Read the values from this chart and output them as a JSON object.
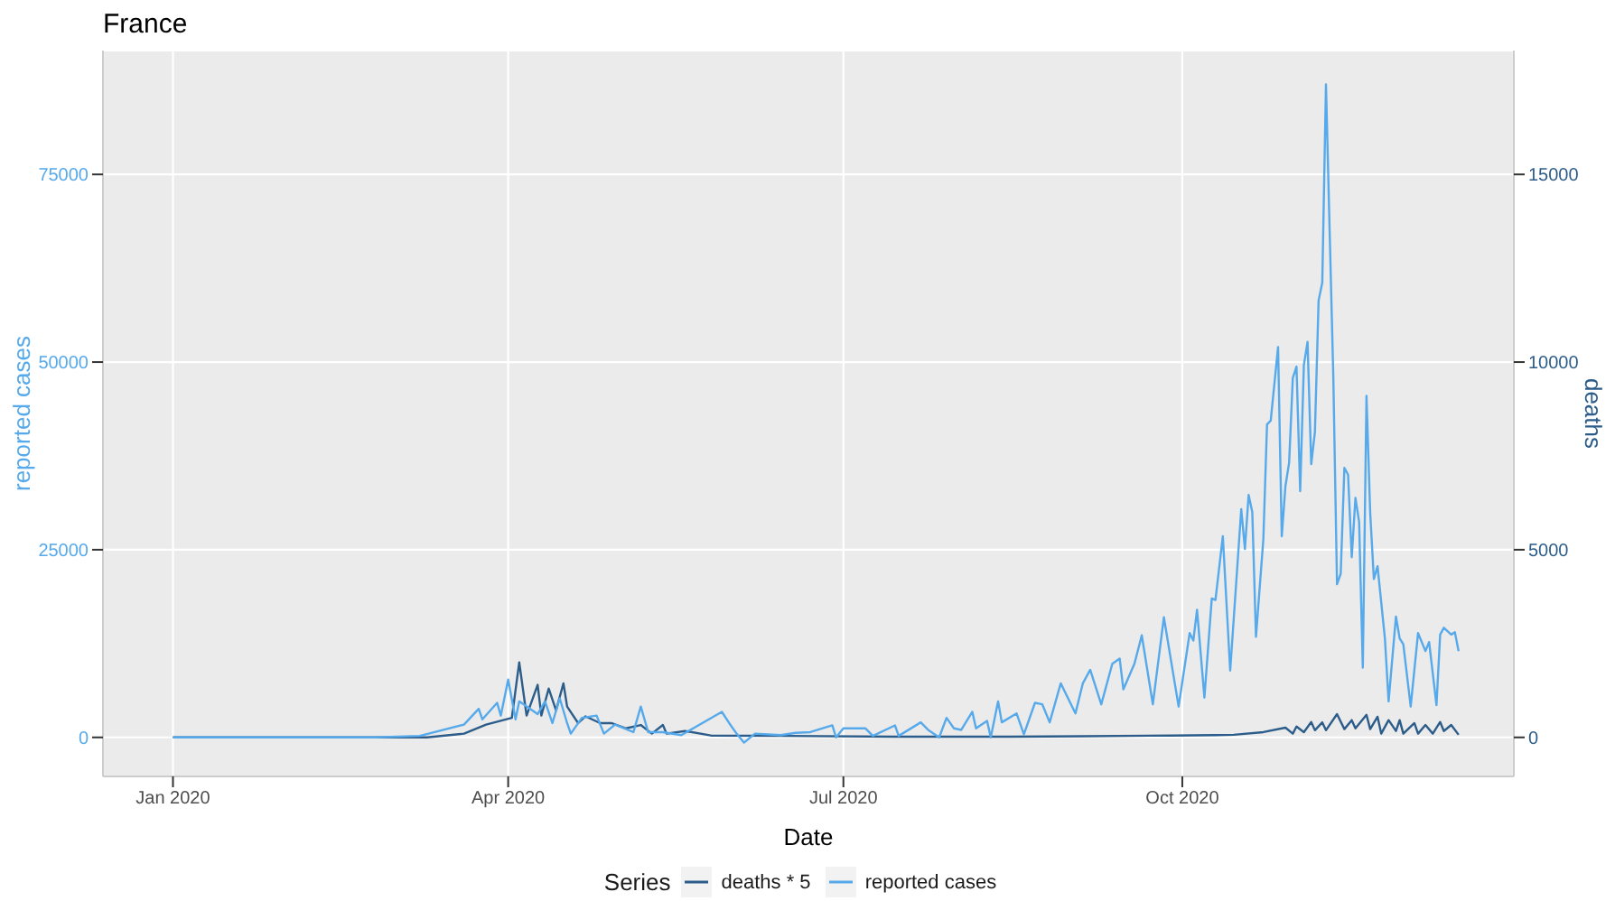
{
  "chart_data": {
    "type": "line",
    "title": "France",
    "xlabel": "Date",
    "ylabel": "reported cases",
    "y2label": "deaths",
    "legend_title": "Series",
    "legend": "bottom",
    "grid": true,
    "xlim": [
      "2019-12-13",
      "2020-12-30"
    ],
    "xticks": [
      {
        "value": "2020-01-01",
        "label": "Jan 2020"
      },
      {
        "value": "2020-04-01",
        "label": "Apr 2020"
      },
      {
        "value": "2020-07-01",
        "label": "Jul 2020"
      },
      {
        "value": "2020-10-01",
        "label": "Oct 2020"
      }
    ],
    "ylim": [
      -5200,
      91500
    ],
    "yticks": [
      0,
      25000,
      50000,
      75000
    ],
    "y2lim": [
      -1040,
      18300
    ],
    "y2ticks": [
      0,
      5000,
      10000,
      15000
    ],
    "series": [
      {
        "name": "deaths * 5",
        "color": "#2c5d8a",
        "axis": "y2",
        "x": [
          "2020-01-01",
          "2020-03-10",
          "2020-03-20",
          "2020-03-26",
          "2020-04-02",
          "2020-04-04",
          "2020-04-06",
          "2020-04-09",
          "2020-04-10",
          "2020-04-12",
          "2020-04-14",
          "2020-04-16",
          "2020-04-17",
          "2020-04-20",
          "2020-04-22",
          "2020-04-26",
          "2020-04-29",
          "2020-05-03",
          "2020-05-07",
          "2020-05-10",
          "2020-05-13",
          "2020-05-14",
          "2020-05-19",
          "2020-05-26",
          "2020-06-15",
          "2020-07-15",
          "2020-08-15",
          "2020-09-04",
          "2020-09-28",
          "2020-10-10",
          "2020-10-15",
          "2020-10-23",
          "2020-10-29",
          "2020-10-31",
          "2020-11-01",
          "2020-11-03",
          "2020-11-05",
          "2020-11-06",
          "2020-11-08",
          "2020-11-09",
          "2020-11-12",
          "2020-11-14",
          "2020-11-16",
          "2020-11-17",
          "2020-11-20",
          "2020-11-21",
          "2020-11-23",
          "2020-11-24",
          "2020-11-26",
          "2020-11-28",
          "2020-11-29",
          "2020-11-30",
          "2020-12-03",
          "2020-12-04",
          "2020-12-06",
          "2020-12-08",
          "2020-12-10",
          "2020-12-11",
          "2020-12-13",
          "2020-12-15"
        ],
        "values": [
          0,
          0,
          100,
          340,
          520,
          2000,
          580,
          1400,
          580,
          1300,
          720,
          1440,
          820,
          380,
          560,
          380,
          380,
          240,
          330,
          100,
          330,
          100,
          170,
          50,
          40,
          20,
          20,
          30,
          50,
          60,
          70,
          140,
          260,
          100,
          290,
          140,
          410,
          190,
          400,
          190,
          620,
          220,
          460,
          240,
          600,
          220,
          550,
          100,
          460,
          170,
          460,
          100,
          380,
          100,
          330,
          100,
          410,
          170,
          330,
          70
        ]
      },
      {
        "name": "reported cases",
        "color": "#56a9ea",
        "x": [
          "2020-01-01",
          "2020-02-25",
          "2020-03-08",
          "2020-03-20",
          "2020-03-24",
          "2020-03-25",
          "2020-03-29",
          "2020-03-30",
          "2020-04-01",
          "2020-04-03",
          "2020-04-04",
          "2020-04-09",
          "2020-04-11",
          "2020-04-13",
          "2020-04-15",
          "2020-04-17",
          "2020-04-18",
          "2020-04-21",
          "2020-04-25",
          "2020-04-27",
          "2020-04-30",
          "2020-05-05",
          "2020-05-07",
          "2020-05-09",
          "2020-05-13",
          "2020-05-18",
          "2020-05-29",
          "2020-05-31",
          "2020-06-02",
          "2020-06-04",
          "2020-06-07",
          "2020-06-14",
          "2020-06-18",
          "2020-06-22",
          "2020-06-28",
          "2020-06-29",
          "2020-07-01",
          "2020-07-07",
          "2020-07-09",
          "2020-07-15",
          "2020-07-16",
          "2020-07-22",
          "2020-07-24",
          "2020-07-27",
          "2020-07-29",
          "2020-07-31",
          "2020-08-02",
          "2020-08-05",
          "2020-08-06",
          "2020-08-09",
          "2020-08-10",
          "2020-08-12",
          "2020-08-13",
          "2020-08-17",
          "2020-08-19",
          "2020-08-22",
          "2020-08-24",
          "2020-08-26",
          "2020-08-29",
          "2020-09-02",
          "2020-09-04",
          "2020-09-06",
          "2020-09-09",
          "2020-09-12",
          "2020-09-14",
          "2020-09-15",
          "2020-09-18",
          "2020-09-20",
          "2020-09-23",
          "2020-09-26",
          "2020-09-30",
          "2020-10-03",
          "2020-10-04",
          "2020-10-05",
          "2020-10-07",
          "2020-10-09",
          "2020-10-10",
          "2020-10-12",
          "2020-10-14",
          "2020-10-17",
          "2020-10-18",
          "2020-10-19",
          "2020-10-20",
          "2020-10-21",
          "2020-10-23",
          "2020-10-24",
          "2020-10-25",
          "2020-10-27",
          "2020-10-28",
          "2020-10-29",
          "2020-10-30",
          "2020-10-31",
          "2020-11-01",
          "2020-11-02",
          "2020-11-03",
          "2020-11-04",
          "2020-11-05",
          "2020-11-06",
          "2020-11-07",
          "2020-11-08",
          "2020-11-09",
          "2020-11-11",
          "2020-11-12",
          "2020-11-13",
          "2020-11-14",
          "2020-11-15",
          "2020-11-16",
          "2020-11-17",
          "2020-11-18",
          "2020-11-19",
          "2020-11-20",
          "2020-11-21",
          "2020-11-22",
          "2020-11-23",
          "2020-11-25",
          "2020-11-26",
          "2020-11-28",
          "2020-11-29",
          "2020-11-30",
          "2020-12-02",
          "2020-12-04",
          "2020-12-06",
          "2020-12-07",
          "2020-12-09",
          "2020-12-10",
          "2020-12-11",
          "2020-12-13",
          "2020-12-14",
          "2020-12-15"
        ],
        "values": [
          0,
          0,
          200,
          1700,
          3800,
          2400,
          4600,
          2900,
          7700,
          2400,
          4800,
          3100,
          4800,
          1900,
          5200,
          1900,
          500,
          2600,
          2900,
          500,
          1700,
          700,
          4100,
          700,
          700,
          300,
          3400,
          1900,
          500,
          -700,
          500,
          300,
          600,
          700,
          1600,
          0,
          1200,
          1200,
          200,
          1600,
          200,
          2000,
          1000,
          0,
          2600,
          1200,
          1000,
          3400,
          1200,
          2200,
          0,
          4800,
          2000,
          3200,
          400,
          4600,
          4400,
          2000,
          7200,
          3200,
          7200,
          9000,
          4400,
          9800,
          10500,
          6400,
          9800,
          13600,
          4400,
          16000,
          4100,
          13900,
          12900,
          17000,
          5300,
          18500,
          18300,
          26800,
          8900,
          30400,
          25100,
          32300,
          30000,
          13400,
          26400,
          41700,
          42200,
          52000,
          26800,
          33500,
          36600,
          47900,
          49400,
          32800,
          49600,
          52700,
          36400,
          40700,
          58200,
          60600,
          87000,
          47900,
          20400,
          21800,
          35900,
          35000,
          24000,
          31900,
          28700,
          9300,
          45500,
          30000,
          21100,
          22800,
          13200,
          4800,
          16100,
          13200,
          12400,
          4100,
          13900,
          11500,
          12700,
          4300,
          13700,
          14600,
          13700,
          14000,
          11500
        ]
      }
    ]
  }
}
